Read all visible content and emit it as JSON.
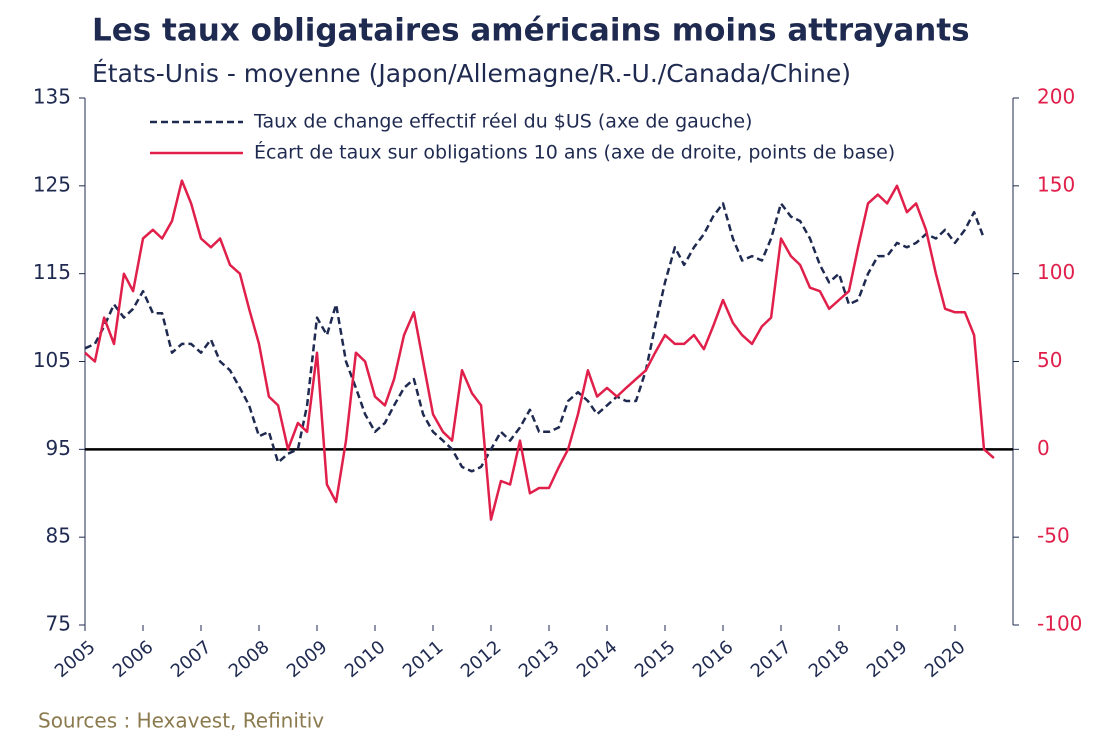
{
  "chart_data": {
    "type": "line",
    "title": "Les taux obligataires américains moins attrayants",
    "subtitle": "États-Unis - moyenne (Japon/Allemagne/R.-U./Canada/Chine)",
    "source": "Sources : Hexavest, Refinitiv",
    "x": [
      2005,
      2005.17,
      2005.33,
      2005.5,
      2005.67,
      2005.83,
      2006,
      2006.17,
      2006.33,
      2006.5,
      2006.67,
      2006.83,
      2007,
      2007.17,
      2007.33,
      2007.5,
      2007.67,
      2007.83,
      2008,
      2008.17,
      2008.33,
      2008.5,
      2008.67,
      2008.83,
      2009,
      2009.17,
      2009.33,
      2009.5,
      2009.67,
      2009.83,
      2010,
      2010.17,
      2010.33,
      2010.5,
      2010.67,
      2010.83,
      2011,
      2011.17,
      2011.33,
      2011.5,
      2011.67,
      2011.83,
      2012,
      2012.17,
      2012.33,
      2012.5,
      2012.67,
      2012.83,
      2013,
      2013.17,
      2013.33,
      2013.5,
      2013.67,
      2013.83,
      2014,
      2014.17,
      2014.33,
      2014.5,
      2014.67,
      2014.83,
      2015,
      2015.17,
      2015.33,
      2015.5,
      2015.67,
      2015.83,
      2016,
      2016.17,
      2016.33,
      2016.5,
      2016.67,
      2016.83,
      2017,
      2017.17,
      2017.33,
      2017.5,
      2017.67,
      2017.83,
      2018,
      2018.17,
      2018.33,
      2018.5,
      2018.67,
      2018.83,
      2019,
      2019.17,
      2019.33,
      2019.5,
      2019.67,
      2019.83,
      2020,
      2020.17,
      2020.33,
      2020.5,
      2020.67
    ],
    "series": [
      {
        "name": "Taux de change effectif réel du $US (axe de gauche)",
        "color": "#1f2a50",
        "dash": true,
        "axis": "y",
        "values": [
          106.5,
          107,
          109,
          111.5,
          110,
          111,
          113,
          110.5,
          110.5,
          106,
          107,
          107,
          106,
          107.5,
          105,
          104,
          102,
          100,
          96.5,
          97,
          93.5,
          94.5,
          95,
          100,
          110,
          108,
          111.5,
          105,
          102,
          99,
          97,
          98,
          100,
          102,
          103,
          99,
          97,
          96,
          95,
          93,
          92.5,
          93,
          95,
          97,
          96,
          97.5,
          99.5,
          97,
          97,
          97.5,
          100.5,
          101.5,
          100.5,
          99,
          100,
          101,
          100.5,
          100.5,
          104,
          109,
          114,
          118,
          116,
          118,
          119.5,
          121.5,
          123,
          119,
          116.5,
          117,
          116.5,
          119,
          123,
          121.5,
          121,
          119,
          116,
          114,
          115,
          111.5,
          112,
          115,
          117,
          117,
          118.5,
          118,
          118.5,
          119.5,
          119,
          120,
          118.5,
          120,
          122,
          119,
          null
        ]
      },
      {
        "name": "Écart de taux sur obligations 10 ans (axe de droite, points de base)",
        "color": "#e0204b",
        "dash": false,
        "axis": "y2",
        "values": [
          55,
          50,
          75,
          60,
          100,
          90,
          120,
          125,
          120,
          130,
          153,
          140,
          120,
          115,
          120,
          105,
          100,
          80,
          60,
          30,
          25,
          0,
          15,
          10,
          55,
          -20,
          -30,
          5,
          55,
          50,
          30,
          25,
          40,
          65,
          78,
          50,
          20,
          10,
          5,
          45,
          32,
          25,
          -40,
          -18,
          -20,
          5,
          -25,
          -22,
          -22,
          -10,
          0,
          20,
          45,
          30,
          35,
          30,
          35,
          40,
          45,
          55,
          65,
          60,
          60,
          65,
          57,
          70,
          85,
          72,
          65,
          60,
          70,
          75,
          120,
          110,
          105,
          92,
          90,
          80,
          85,
          90,
          115,
          140,
          145,
          140,
          150,
          135,
          140,
          125,
          100,
          80,
          78,
          78,
          65,
          0,
          -5
        ]
      }
    ],
    "xlim": [
      2005,
      2021
    ],
    "xticks": [
      2005,
      2006,
      2007,
      2008,
      2009,
      2010,
      2011,
      2012,
      2013,
      2014,
      2015,
      2016,
      2017,
      2018,
      2019,
      2020
    ],
    "ylim": [
      75,
      135
    ],
    "yticks": [
      75,
      85,
      95,
      105,
      115,
      125,
      135
    ],
    "y2lim": [
      -100,
      200
    ],
    "y2ticks": [
      -100,
      -50,
      0,
      50,
      100,
      150,
      200
    ],
    "hline": 95
  }
}
